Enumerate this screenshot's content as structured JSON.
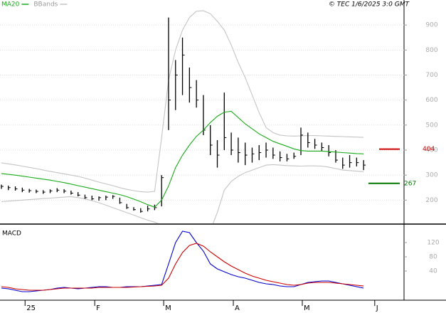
{
  "chart_data": [
    {
      "type": "ohlc",
      "source": "© TEC 1/6/2025 3:0 GMT",
      "x": [
        0,
        1,
        2,
        3,
        4,
        5,
        6,
        7,
        8,
        9,
        10,
        11,
        12,
        13,
        14,
        15,
        16,
        17,
        18,
        19,
        20,
        21,
        22,
        23,
        24,
        25,
        26,
        27,
        28,
        29,
        30,
        31,
        32,
        33,
        34,
        35,
        36,
        37,
        38,
        39,
        40,
        41,
        42,
        43,
        44,
        45,
        46,
        47,
        48,
        49,
        50,
        51,
        52
      ],
      "xlim": [
        -0.2,
        57.5
      ],
      "ylim": [
        110,
        1000
      ],
      "yticks": [
        200,
        300,
        400,
        500,
        600,
        700,
        800,
        900
      ],
      "grid": true,
      "bars": {
        "color": "#000000",
        "high": [
          262,
          258,
          255,
          250,
          245,
          242,
          240,
          243,
          248,
          244,
          238,
          232,
          222,
          218,
          215,
          218,
          220,
          210,
          185,
          172,
          168,
          178,
          182,
          300,
          930,
          760,
          850,
          730,
          680,
          620,
          500,
          440,
          630,
          470,
          450,
          430,
          410,
          420,
          430,
          410,
          395,
          385,
          390,
          490,
          470,
          445,
          430,
          420,
          400,
          370,
          380,
          370,
          360
        ],
        "low": [
          245,
          240,
          238,
          232,
          230,
          228,
          225,
          228,
          232,
          228,
          222,
          215,
          205,
          200,
          198,
          200,
          205,
          185,
          165,
          158,
          150,
          155,
          160,
          175,
          480,
          560,
          620,
          590,
          570,
          460,
          380,
          330,
          400,
          380,
          350,
          340,
          350,
          360,
          370,
          365,
          355,
          355,
          365,
          380,
          410,
          405,
          395,
          375,
          350,
          325,
          330,
          335,
          320
        ],
        "close": [
          255,
          250,
          245,
          240,
          238,
          235,
          232,
          237,
          240,
          236,
          228,
          220,
          210,
          205,
          210,
          212,
          215,
          190,
          170,
          162,
          155,
          165,
          170,
          290,
          600,
          700,
          780,
          650,
          600,
          480,
          420,
          380,
          450,
          400,
          390,
          380,
          385,
          390,
          400,
          380,
          370,
          365,
          375,
          460,
          430,
          420,
          410,
          390,
          360,
          340,
          350,
          350,
          340
        ]
      },
      "series": [
        {
          "name": "MA20",
          "color": "#1aaa1a",
          "values": [
            306,
            303,
            300,
            296,
            292,
            288,
            284,
            280,
            275,
            270,
            264,
            258,
            252,
            246,
            240,
            234,
            228,
            222,
            214,
            204,
            194,
            182,
            172,
            200,
            257,
            330,
            380,
            420,
            455,
            480,
            510,
            535,
            552,
            555,
            530,
            505,
            485,
            465,
            450,
            435,
            425,
            415,
            405,
            398,
            396,
            396,
            396,
            394,
            392,
            390,
            388,
            386,
            385
          ]
        },
        {
          "name": "BBands",
          "color": "#c4c4c4",
          "upper": [
            349,
            345,
            341,
            336,
            331,
            326,
            320,
            315,
            310,
            305,
            300,
            295,
            288,
            280,
            272,
            265,
            258,
            250,
            243,
            238,
            234,
            232,
            235,
            450,
            680,
            800,
            880,
            930,
            955,
            957,
            945,
            915,
            880,
            820,
            750,
            690,
            620,
            550,
            490,
            470,
            460,
            457,
            456,
            457,
            458,
            458,
            457,
            456,
            455,
            454,
            453,
            452,
            451
          ],
          "lower": [
            194,
            196,
            198,
            200,
            202,
            204,
            206,
            208,
            210,
            212,
            214,
            210,
            205,
            198,
            190,
            180,
            170,
            160,
            150,
            140,
            130,
            120,
            112,
            100,
            60,
            40,
            20,
            20,
            10,
            30,
            80,
            150,
            240,
            275,
            295,
            310,
            320,
            330,
            340,
            342,
            340,
            338,
            337,
            336,
            337,
            337,
            336,
            332,
            326,
            320,
            318,
            316,
            314
          ]
        }
      ],
      "markers": [
        {
          "value": 404,
          "color": "#cc0000"
        },
        {
          "value": 267,
          "color": "#007700"
        }
      ]
    },
    {
      "type": "line",
      "title": "MACD",
      "ylim": [
        -42,
        168
      ],
      "yticks": [
        40,
        80,
        120
      ],
      "xticks": [
        {
          "value": 3.4,
          "label": "25"
        },
        {
          "value": 13.4,
          "label": "F"
        },
        {
          "value": 23.3,
          "label": "M"
        },
        {
          "value": 33.3,
          "label": "A"
        },
        {
          "value": 43.2,
          "label": "M"
        },
        {
          "value": 53.6,
          "label": "J"
        }
      ],
      "series": [
        {
          "color": "#0000cc",
          "values": [
            -8,
            -10,
            -14,
            -18,
            -18,
            -16,
            -14,
            -12,
            -8,
            -6,
            -8,
            -10,
            -8,
            -6,
            -4,
            -4,
            -6,
            -6,
            -4,
            -4,
            -4,
            -2,
            0,
            2,
            60,
            120,
            152,
            148,
            120,
            96,
            60,
            46,
            38,
            30,
            24,
            20,
            14,
            8,
            4,
            2,
            -2,
            -4,
            -4,
            2,
            8,
            10,
            12,
            12,
            8,
            4,
            0,
            -4,
            -8
          ]
        },
        {
          "color": "#cc0000",
          "values": [
            -4,
            -6,
            -10,
            -12,
            -14,
            -14,
            -14,
            -12,
            -10,
            -8,
            -8,
            -8,
            -8,
            -8,
            -6,
            -6,
            -6,
            -6,
            -6,
            -5,
            -4,
            -3,
            -2,
            0,
            20,
            60,
            92,
            112,
            118,
            110,
            94,
            80,
            66,
            54,
            44,
            34,
            26,
            20,
            14,
            10,
            6,
            2,
            0,
            2,
            6,
            8,
            8,
            8,
            6,
            4,
            2,
            0,
            -2
          ]
        }
      ]
    }
  ]
}
